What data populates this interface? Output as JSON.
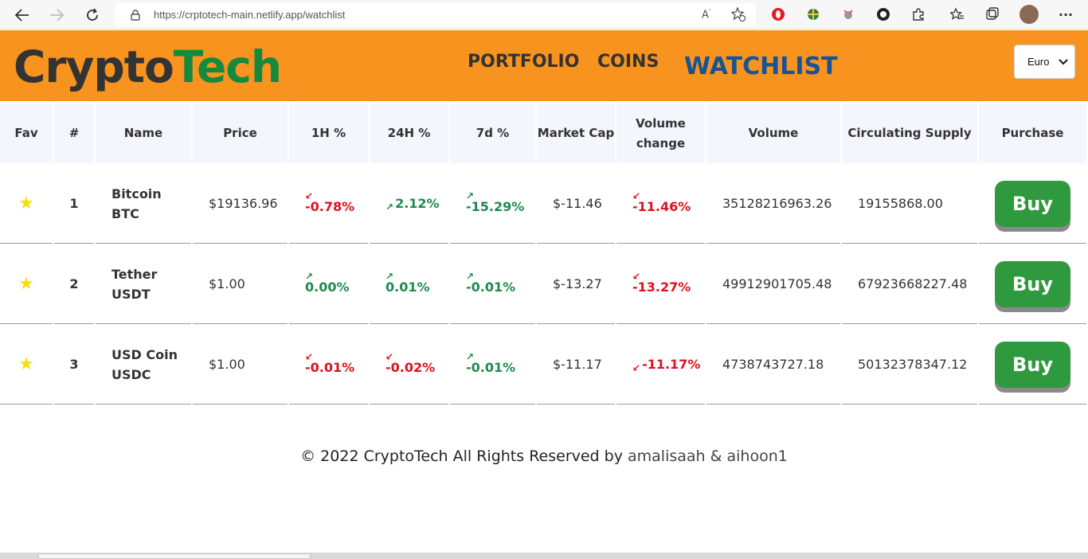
{
  "browser": {
    "url": "https://crptotech-main.netlify.app/watchlist",
    "icons": [
      "back-arrow-icon",
      "forward-arrow-icon",
      "refresh-icon",
      "lock-icon",
      "read-aloud-icon",
      "favorite-add-icon",
      "opera-icon",
      "extension-globe-icon",
      "extension-bug-icon",
      "extension-circle-icon",
      "puzzle-icon",
      "favorites-icon",
      "collections-icon",
      "profile-avatar",
      "more-icon"
    ]
  },
  "header": {
    "logo_part1": "Crypto",
    "logo_part2": "Tech",
    "nav": [
      {
        "label": "PORTFOLIO"
      },
      {
        "label": "COINS"
      },
      {
        "label": "WATCHLIST"
      }
    ],
    "currency_selected": "Euro",
    "colors": {
      "header_bg": "#f7931e",
      "logo_dark": "#333333",
      "logo_green": "#148a3f",
      "nav_active": "#1a5296"
    }
  },
  "table": {
    "headers": [
      "Fav",
      "#",
      "Name",
      "Price",
      "1H %",
      "24H %",
      "7d %",
      "Market Cap",
      "Volume change",
      "Volume",
      "Circulating Supply",
      "Purchase"
    ],
    "rows": [
      {
        "rank": "1",
        "name": "Bitcoin",
        "symbol": "BTC",
        "price": "$19136.96",
        "h1": "-0.78%",
        "h24": "2.12%",
        "d7": "-15.29%",
        "market_cap": "$-11.46",
        "volume_change": "-11.46%",
        "volume": "35128216963.26",
        "supply": "19155868.00",
        "buy": "Buy"
      },
      {
        "rank": "2",
        "name": "Tether",
        "symbol": "USDT",
        "price": "$1.00",
        "h1": "0.00%",
        "h24": "0.01%",
        "d7": "-0.01%",
        "market_cap": "$-13.27",
        "volume_change": "-13.27%",
        "volume": "49912901705.48",
        "supply": "67923668227.48",
        "buy": "Buy"
      },
      {
        "rank": "3",
        "name": "USD Coin",
        "symbol": "USDC",
        "price": "$1.00",
        "h1": "-0.01%",
        "h24": "-0.02%",
        "d7": "-0.01%",
        "market_cap": "$-11.17",
        "volume_change": "-11.17%",
        "volume": "4738743727.18",
        "supply": "50132378347.12",
        "buy": "Buy"
      }
    ],
    "colors": {
      "up": "#1e8a4f",
      "down": "#e0111e",
      "buy_bg": "#2e9a3d",
      "header_bg": "#f3f6fc",
      "star": "#f5e10a"
    }
  },
  "footer": {
    "text": "© 2022 CryptoTech All Rights Reserved by ",
    "authors": "amalisaah & aihoon1"
  }
}
